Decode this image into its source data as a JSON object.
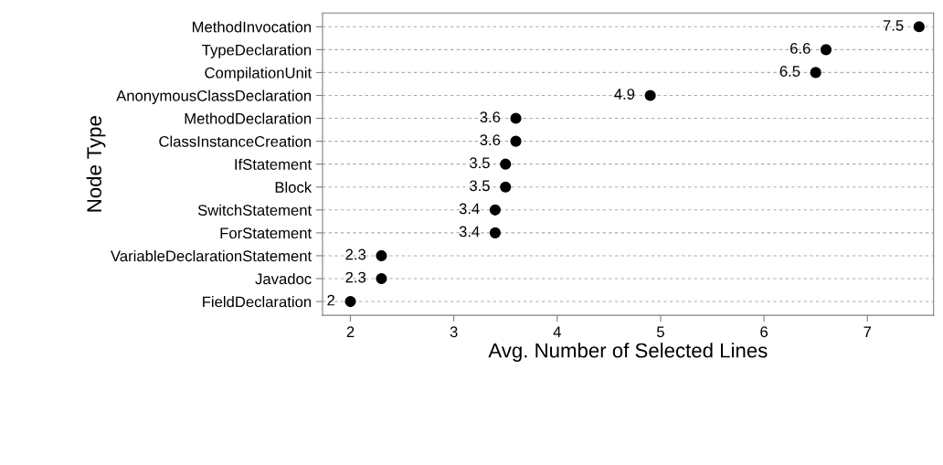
{
  "chart_data": {
    "type": "scatter",
    "orientation": "horizontal",
    "xlabel": "Avg. Number of Selected Lines",
    "ylabel": "Node Type",
    "categories": [
      "MethodInvocation",
      "TypeDeclaration",
      "CompilationUnit",
      "AnonymousClassDeclaration",
      "MethodDeclaration",
      "ClassInstanceCreation",
      "IfStatement",
      "Block",
      "SwitchStatement",
      "ForStatement",
      "VariableDeclarationStatement",
      "Javadoc",
      "FieldDeclaration"
    ],
    "values": [
      7.5,
      6.6,
      6.5,
      4.9,
      3.6,
      3.6,
      3.5,
      3.5,
      3.4,
      3.4,
      2.3,
      2.3,
      2
    ],
    "color": "#000000",
    "marker": "circle",
    "data_labels": true,
    "grid": "y",
    "xlim": [
      1.73,
      7.64
    ],
    "xticks": [
      2,
      3,
      4,
      5,
      6,
      7
    ]
  }
}
